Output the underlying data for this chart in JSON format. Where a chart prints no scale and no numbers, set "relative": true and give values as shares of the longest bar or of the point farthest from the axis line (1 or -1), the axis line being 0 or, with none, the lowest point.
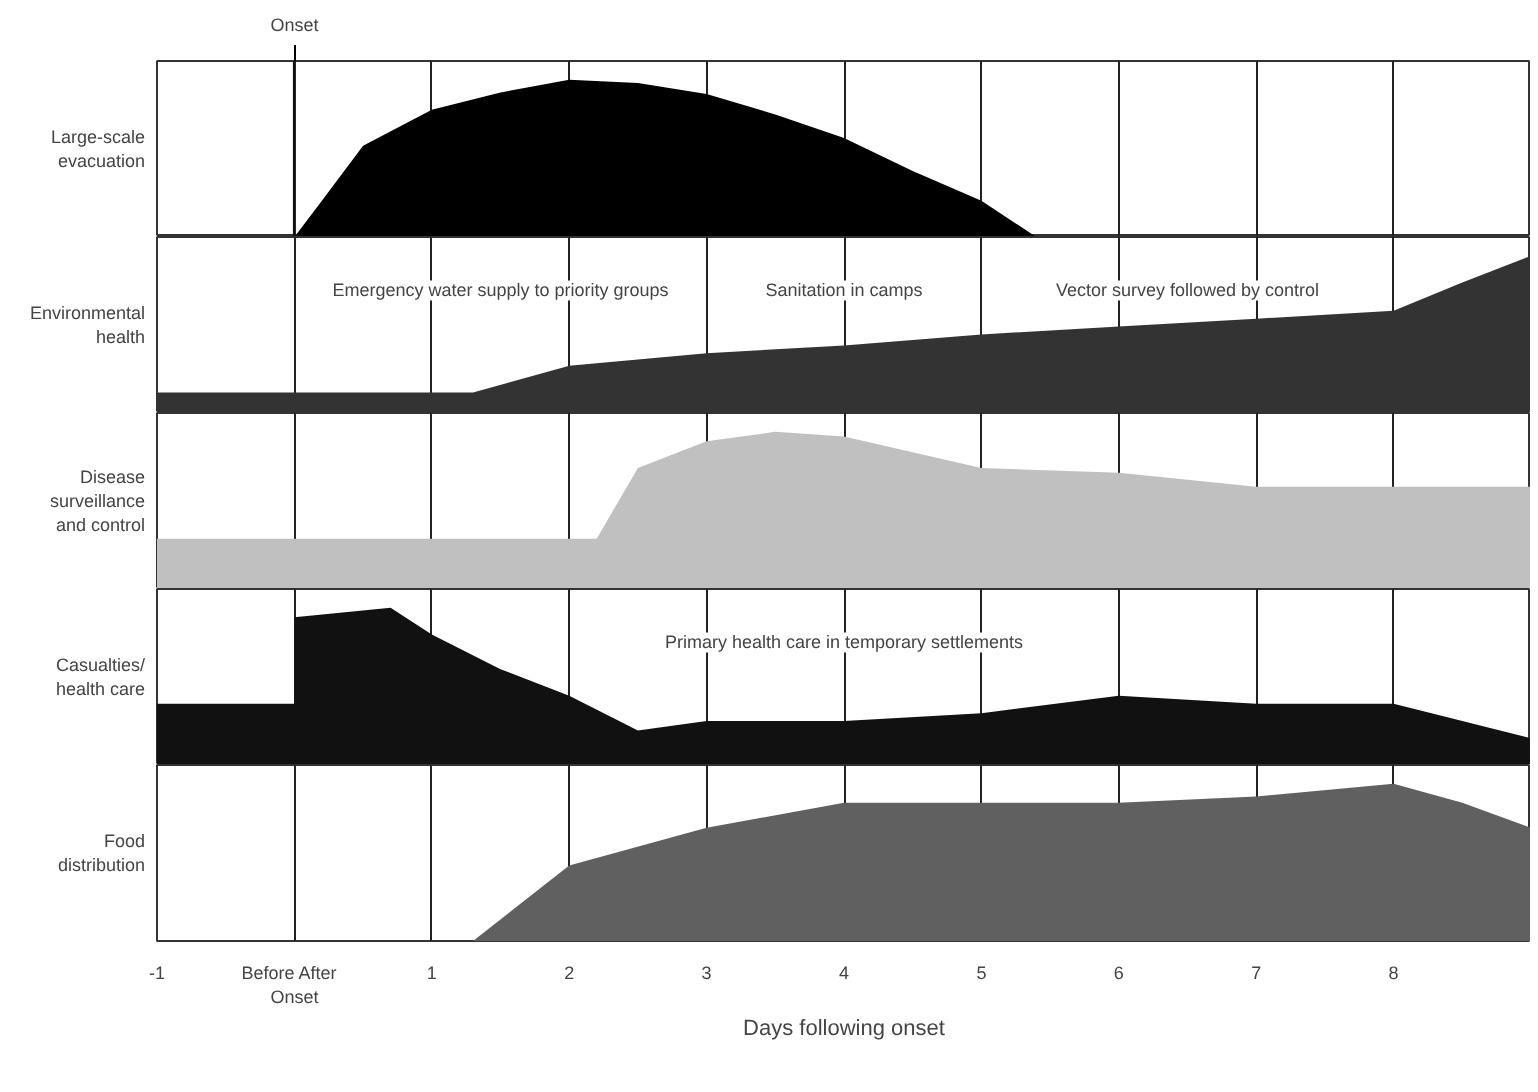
{
  "chart_data": [
    {
      "type": "area",
      "relative": true,
      "ylabel": "Large-scale\nevacuation",
      "grid": "x",
      "tick_labels": false,
      "xlim": [
        -1,
        9
      ],
      "xticks": [
        -1,
        0,
        1,
        2,
        3,
        4,
        5,
        6,
        7,
        8
      ],
      "ref_lines": [
        {
          "axis": "x",
          "value": 0,
          "label": "Onset"
        }
      ],
      "x": [
        0,
        0.2,
        0.5,
        1,
        1.5,
        2,
        2.5,
        3,
        3.5,
        4,
        4.5,
        5,
        5.4
      ],
      "series": [
        {
          "color": "#000000",
          "values": [
            0,
            0.23,
            0.58,
            0.81,
            0.92,
            1,
            0.98,
            0.91,
            0.78,
            0.63,
            0.42,
            0.23,
            0
          ]
        }
      ]
    },
    {
      "type": "area",
      "relative": true,
      "ylabel": "Environmental\nhealth",
      "grid": "x",
      "tick_labels": false,
      "xlim": [
        -1,
        9
      ],
      "xticks": [
        -1,
        0,
        1,
        2,
        3,
        4,
        5,
        6,
        7,
        8
      ],
      "x": [
        -1,
        1.3,
        2,
        3,
        4,
        5,
        6,
        7,
        8,
        8.5,
        9
      ],
      "series": [
        {
          "color": "#333333",
          "values": [
            0.13,
            0.13,
            0.3,
            0.38,
            0.43,
            0.5,
            0.55,
            0.6,
            0.65,
            0.83,
            1
          ]
        }
      ],
      "annotations": [
        "Emergency water supply to priority groups",
        "Sanitation in camps",
        "Vector survey followed by control"
      ]
    },
    {
      "type": "area",
      "relative": true,
      "ylabel": "Disease\nsurveillance\nand control",
      "grid": "x",
      "tick_labels": false,
      "xlim": [
        -1,
        9
      ],
      "xticks": [
        -1,
        0,
        1,
        2,
        3,
        4,
        5,
        6,
        7,
        8
      ],
      "x": [
        -1,
        2.2,
        2.5,
        3,
        3.5,
        4,
        4.5,
        5,
        6,
        7,
        8,
        9
      ],
      "series": [
        {
          "color": "#c0c0c0",
          "values": [
            0.32,
            0.32,
            0.77,
            0.94,
            1,
            0.97,
            0.87,
            0.77,
            0.74,
            0.65,
            0.65,
            0.65
          ]
        }
      ]
    },
    {
      "type": "area",
      "relative": true,
      "ylabel": "Casualties/\nhealth care",
      "grid": "x",
      "tick_labels": false,
      "xlim": [
        -1,
        9
      ],
      "xticks": [
        -1,
        0,
        1,
        2,
        3,
        4,
        5,
        6,
        7,
        8
      ],
      "x": [
        -1,
        0,
        0,
        0.7,
        1,
        1.5,
        2,
        2.5,
        3,
        4,
        5,
        6,
        7,
        8,
        9
      ],
      "series": [
        {
          "color": "#111111",
          "values": [
            0.39,
            0.39,
            0.94,
            1,
            0.83,
            0.61,
            0.44,
            0.22,
            0.28,
            0.28,
            0.33,
            0.44,
            0.39,
            0.39,
            0.17
          ]
        }
      ],
      "annotations": [
        "Primary health care in temporary settlements"
      ]
    },
    {
      "type": "area",
      "relative": true,
      "ylabel": "Food\ndistribution",
      "xlabel": "Days following onset",
      "grid": "x",
      "xlim": [
        -1,
        9
      ],
      "xticks": [
        -1,
        {
          "value": 0,
          "label": "Before   After\nOnset"
        },
        1,
        2,
        3,
        4,
        5,
        6,
        7,
        8
      ],
      "x": [
        1.3,
        2,
        3,
        4,
        5,
        6,
        7,
        8,
        8.5,
        9
      ],
      "series": [
        {
          "color": "#606060",
          "values": [
            0,
            0.48,
            0.72,
            0.88,
            0.88,
            0.88,
            0.92,
            1,
            0.88,
            0.72
          ]
        }
      ]
    }
  ]
}
